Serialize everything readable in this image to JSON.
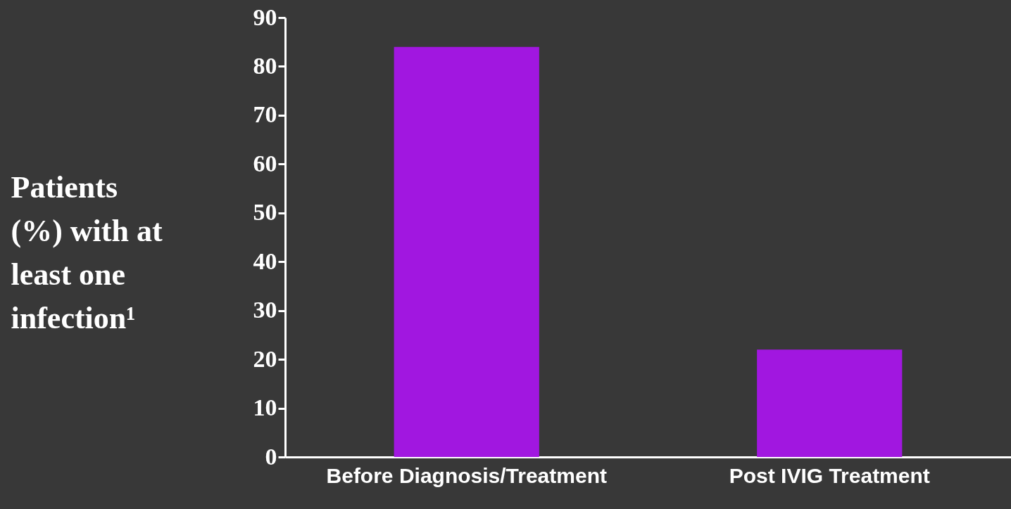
{
  "chart_data": {
    "type": "bar",
    "ylabel": "Patients (%) with at least one infection¹",
    "categories": [
      "Before Diagnosis/Treatment",
      "Post IVIG Treatment"
    ],
    "values": [
      84,
      22
    ],
    "color": "#a117e0",
    "ylim": [
      0,
      90
    ],
    "yticks": [
      0,
      10,
      20,
      30,
      40,
      50,
      60,
      70,
      80,
      90
    ],
    "grid": false
  }
}
